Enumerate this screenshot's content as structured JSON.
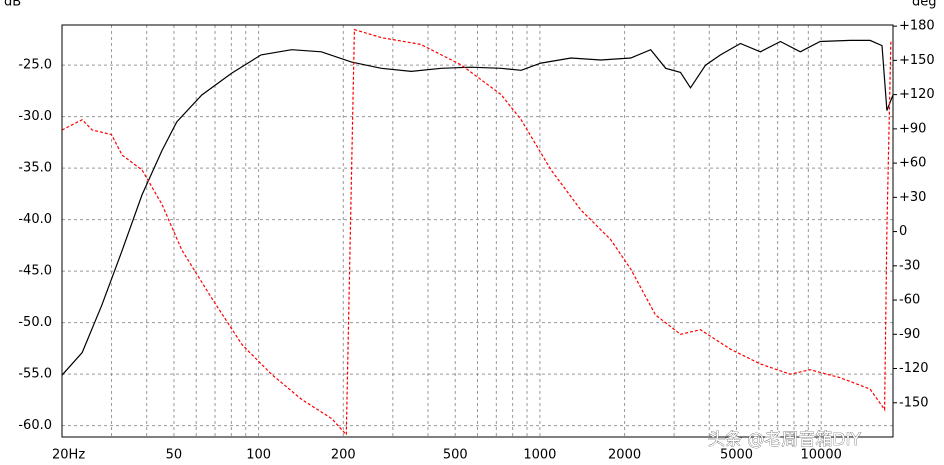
{
  "chart_data": {
    "type": "line",
    "y_label": "dB",
    "y2_label": "deg",
    "annotation": "头条 @老周音箱DIY",
    "xlog": true,
    "grid": true,
    "xlim": [
      20,
      18000
    ],
    "xticks": [
      {
        "value": 20,
        "label": "20Hz"
      },
      50,
      100,
      200,
      500,
      1000,
      2000,
      5000,
      10000
    ],
    "xminorticks": [
      30,
      40,
      60,
      70,
      80,
      90,
      300,
      400,
      600,
      700,
      800,
      900,
      3000,
      4000,
      6000,
      7000,
      8000,
      9000
    ],
    "ylim": [
      -61.1,
      -21.1
    ],
    "yticks": [
      {
        "value": -25,
        "label": "-25.0"
      },
      {
        "value": -30,
        "label": "-30.0"
      },
      {
        "value": -35,
        "label": "-35.0"
      },
      {
        "value": -40,
        "label": "-40.0"
      },
      {
        "value": -45,
        "label": "-45.0"
      },
      {
        "value": -50,
        "label": "-50.0"
      },
      {
        "value": -55,
        "label": "-55.0"
      },
      {
        "value": -60,
        "label": "-60.0"
      }
    ],
    "y2lim": [
      -180,
      181
    ],
    "y2ticks": [
      {
        "value": 180,
        "label": "+180"
      },
      {
        "value": 150,
        "label": "+150"
      },
      {
        "value": 120,
        "label": "+120"
      },
      {
        "value": 90,
        "label": "+90"
      },
      {
        "value": 60,
        "label": "+60"
      },
      {
        "value": 30,
        "label": "+30"
      },
      0,
      -30,
      -60,
      -90,
      -120,
      -150
    ],
    "series": [
      {
        "color": "#000000",
        "dashed": false,
        "x": [
          20,
          23.6,
          27.7,
          32.7,
          38.5,
          45.3,
          51.2,
          62.8,
          80,
          102,
          131,
          167,
          214,
          273,
          349,
          446,
          569,
          728,
          857,
          1008,
          1290,
          1646,
          2104,
          2476,
          2800,
          3162,
          3430,
          3880,
          4385,
          5160,
          6080,
          7160,
          8430,
          9910,
          12670,
          14920,
          16450,
          17130,
          18000
        ],
        "values": [
          -55.1,
          -52.9,
          -48.3,
          -43.0,
          -37.6,
          -33.3,
          -30.5,
          -27.9,
          -25.8,
          -24.0,
          -23.5,
          -23.7,
          -24.7,
          -25.3,
          -25.6,
          -25.3,
          -25.2,
          -25.3,
          -25.5,
          -24.8,
          -24.3,
          -24.5,
          -24.3,
          -23.5,
          -25.3,
          -25.7,
          -27.2,
          -25.0,
          -24.0,
          -22.9,
          -23.7,
          -22.7,
          -23.7,
          -22.7,
          -22.6,
          -22.6,
          -23.1,
          -29.4,
          -27.9
        ]
      },
      {
        "color": "#ff0000",
        "dashed": true,
        "axis": "y2",
        "x": [
          20,
          23.6,
          25.6,
          30,
          32.7,
          38.5,
          45.3,
          53.3,
          68.4,
          87.3,
          111,
          142,
          182,
          205,
          219,
          273,
          377,
          525,
          728,
          857,
          1095,
          1398,
          1785,
          2104,
          2576,
          3162,
          3720,
          4750,
          6080,
          7760,
          9140,
          11680,
          14920,
          16800,
          17130,
          17700
        ],
        "values": [
          89,
          98,
          89,
          85,
          67,
          54,
          24,
          -16,
          -59,
          -99,
          -125,
          -147,
          -164,
          -178,
          177,
          170,
          164,
          146,
          120,
          98,
          54,
          19,
          -7,
          -33,
          -73,
          -90,
          -86,
          -103,
          -116,
          -125,
          -121,
          -128,
          -138,
          -156,
          2,
          168
        ]
      }
    ]
  }
}
